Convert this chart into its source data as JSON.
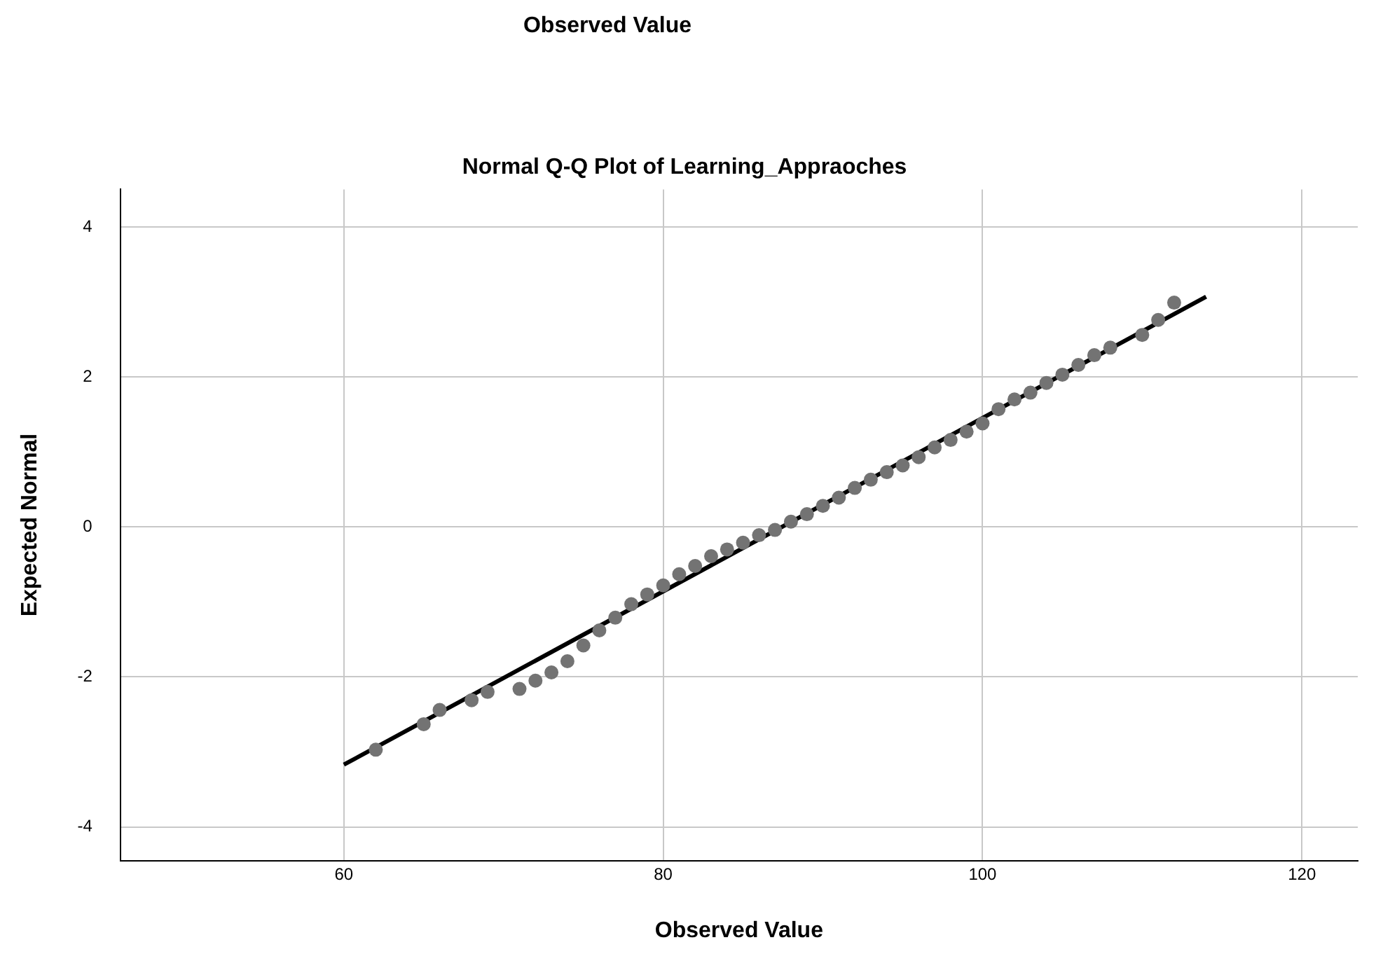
{
  "chart_data": {
    "type": "scatter",
    "title": "Normal Q-Q Plot of Learning_Appraoches",
    "xlabel": "Observed Value",
    "ylabel": "Expected Normal",
    "annotations": [
      "Observed Value"
    ],
    "xlim": [
      46,
      123.5
    ],
    "xticks": [
      60,
      80,
      100,
      120
    ],
    "ylim": [
      -4.45,
      4.5
    ],
    "yticks": [
      -4,
      -2,
      0,
      2,
      4
    ],
    "grid": true,
    "marker": "circle",
    "series": [
      {
        "color": "#737373",
        "x": [
          62,
          65,
          66,
          68,
          69,
          71,
          72,
          73,
          74,
          75,
          76,
          77,
          78,
          79,
          80,
          81,
          82,
          83,
          84,
          85,
          86,
          87,
          88,
          89,
          90,
          91,
          92,
          93,
          94,
          95,
          96,
          97,
          98,
          99,
          100,
          101,
          102,
          103,
          104,
          105,
          106,
          107,
          108,
          110,
          111,
          112
        ],
        "values": [
          -2.97,
          -2.63,
          -2.44,
          -2.31,
          -2.2,
          -2.16,
          -2.05,
          -1.94,
          -1.79,
          -1.58,
          -1.38,
          -1.21,
          -1.03,
          -0.9,
          -0.78,
          -0.63,
          -0.52,
          -0.39,
          -0.3,
          -0.21,
          -0.11,
          -0.04,
          0.07,
          0.17,
          0.28,
          0.39,
          0.52,
          0.63,
          0.73,
          0.82,
          0.93,
          1.06,
          1.16,
          1.27,
          1.38,
          1.57,
          1.7,
          1.79,
          1.92,
          2.03,
          2.16,
          2.29,
          2.39,
          2.56,
          2.76,
          2.99
        ]
      },
      {
        "type": "line",
        "color": "#000000",
        "marker": "none",
        "x": [
          60,
          114
        ],
        "values": [
          -3.17,
          3.07
        ]
      }
    ]
  }
}
